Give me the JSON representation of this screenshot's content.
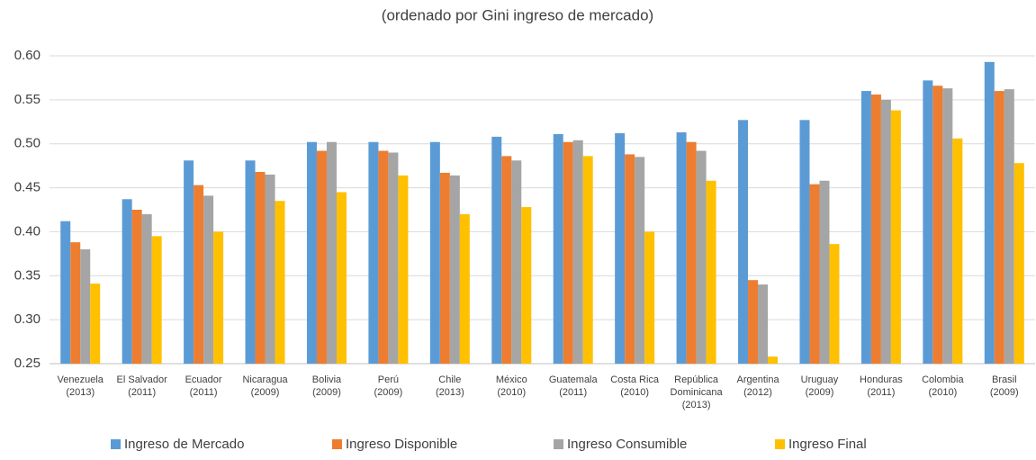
{
  "chart_data": {
    "type": "bar",
    "title": "(ordenado por Gini ingreso de mercado)",
    "categories": [
      [
        "Venezuela",
        "(2013)"
      ],
      [
        "El Salvador",
        "(2011)"
      ],
      [
        "Ecuador",
        "(2011)"
      ],
      [
        "Nicaragua",
        "(2009)"
      ],
      [
        "Bolivia",
        "(2009)"
      ],
      [
        "Perú",
        "(2009)"
      ],
      [
        "Chile",
        "(2013)"
      ],
      [
        "México",
        "(2010)"
      ],
      [
        "Guatemala",
        "(2011)"
      ],
      [
        "Costa Rica",
        "(2010)"
      ],
      [
        "República",
        "Dominicana",
        "(2013)"
      ],
      [
        "Argentina",
        "(2012)"
      ],
      [
        "Uruguay",
        "(2009)"
      ],
      [
        "Honduras",
        "(2011)"
      ],
      [
        "Colombia",
        "(2010)"
      ],
      [
        "Brasil",
        "(2009)"
      ]
    ],
    "series": [
      {
        "name": "Ingreso de Mercado",
        "color": "#5b9bd5",
        "values": [
          0.412,
          0.437,
          0.481,
          0.481,
          0.502,
          0.502,
          0.502,
          0.508,
          0.511,
          0.512,
          0.513,
          0.527,
          0.527,
          0.56,
          0.572,
          0.593
        ]
      },
      {
        "name": "Ingreso Disponible",
        "color": "#ed7d31",
        "values": [
          0.388,
          0.425,
          0.453,
          0.468,
          0.492,
          0.492,
          0.467,
          0.486,
          0.502,
          0.488,
          0.502,
          0.345,
          0.454,
          0.556,
          0.566,
          0.56
        ]
      },
      {
        "name": "Ingreso Consumible",
        "color": "#a5a5a5",
        "values": [
          0.38,
          0.42,
          0.441,
          0.465,
          0.502,
          0.49,
          0.464,
          0.481,
          0.504,
          0.485,
          0.492,
          0.34,
          0.458,
          0.55,
          0.563,
          0.562
        ]
      },
      {
        "name": "Ingreso Final",
        "color": "#ffc000",
        "values": [
          0.341,
          0.395,
          0.4,
          0.435,
          0.445,
          0.464,
          0.42,
          0.428,
          0.486,
          0.4,
          0.458,
          0.258,
          0.386,
          0.538,
          0.506,
          0.478
        ]
      }
    ],
    "ylim": [
      0.25,
      0.6
    ],
    "yticks": [
      {
        "value": 0.25,
        "label": "0.25"
      },
      {
        "value": 0.3,
        "label": "0.30"
      },
      {
        "value": 0.35,
        "label": "0.35"
      },
      {
        "value": 0.4,
        "label": "0.40"
      },
      {
        "value": 0.45,
        "label": "0.45"
      },
      {
        "value": 0.5,
        "label": "0.50"
      },
      {
        "value": 0.55,
        "label": "0.55"
      },
      {
        "value": 0.6,
        "label": "0.60"
      }
    ],
    "grid": true,
    "legend": "bottom"
  }
}
